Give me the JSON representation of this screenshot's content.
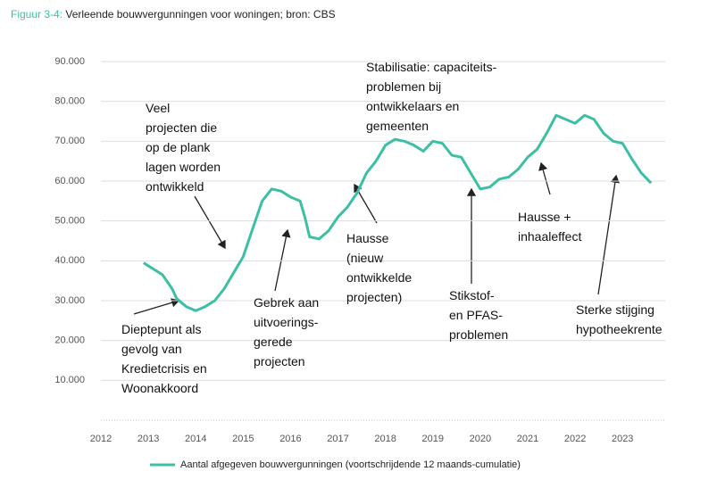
{
  "chart_data": {
    "type": "line",
    "title_label": "Figuur 3-4:",
    "title": "Verleende bouwvergunningen voor woningen; bron: CBS",
    "xlim": [
      2012,
      2023.9
    ],
    "xticks": [
      2012,
      2013,
      2014,
      2015,
      2016,
      2017,
      2018,
      2019,
      2020,
      2021,
      2022,
      2023
    ],
    "ylim": [
      0,
      90000
    ],
    "yticks": [
      {
        "value": 10000,
        "label": "10.000"
      },
      {
        "value": 20000,
        "label": "20.000"
      },
      {
        "value": 30000,
        "label": "30.000"
      },
      {
        "value": 40000,
        "label": "40.000"
      },
      {
        "value": 50000,
        "label": "50.000"
      },
      {
        "value": 60000,
        "label": "60.000"
      },
      {
        "value": 70000,
        "label": "70.000"
      },
      {
        "value": 80000,
        "label": "80.000"
      },
      {
        "value": 90000,
        "label": "90.000"
      }
    ],
    "grid": true,
    "legend": "bottom",
    "x": [
      2012.9,
      2013.1,
      2013.3,
      2013.5,
      2013.6,
      2013.8,
      2014.0,
      2014.2,
      2014.4,
      2014.6,
      2014.8,
      2015.0,
      2015.2,
      2015.4,
      2015.6,
      2015.8,
      2016.0,
      2016.2,
      2016.3,
      2016.4,
      2016.6,
      2016.8,
      2017.0,
      2017.2,
      2017.4,
      2017.6,
      2017.8,
      2018.0,
      2018.2,
      2018.4,
      2018.6,
      2018.8,
      2019.0,
      2019.2,
      2019.4,
      2019.6,
      2019.8,
      2020.0,
      2020.2,
      2020.4,
      2020.6,
      2020.8,
      2021.0,
      2021.2,
      2021.4,
      2021.6,
      2021.8,
      2022.0,
      2022.2,
      2022.4,
      2022.6,
      2022.8,
      2023.0,
      2023.2,
      2023.4,
      2023.6
    ],
    "series": [
      {
        "name": "Aantal afgegeven bouwvergunningen (voortschrijdende 12 maands-cumulatie)",
        "color": "#3dbfa6",
        "values": [
          39500,
          38000,
          36500,
          33000,
          30500,
          28500,
          27500,
          28500,
          30000,
          33000,
          37000,
          41000,
          48000,
          55000,
          58000,
          57500,
          56000,
          55000,
          51000,
          46000,
          45500,
          47500,
          51000,
          53500,
          57000,
          62000,
          65000,
          69000,
          70500,
          70000,
          69000,
          67500,
          70000,
          69500,
          66500,
          66000,
          62000,
          58000,
          58500,
          60500,
          61000,
          63000,
          66000,
          68000,
          72000,
          76500,
          75500,
          74500,
          76500,
          75500,
          72000,
          70000,
          69500,
          65500,
          62000,
          59500
        ]
      }
    ],
    "annotations": [
      [
        "Veel",
        "projecten die",
        "op de plank",
        "lagen worden",
        "ontwikkeld"
      ],
      [
        "Dieptepunt als",
        "gevolg van",
        "Kredietcrisis en",
        "Woonakkoord"
      ],
      [
        "Gebrek aan",
        "uitvoerings-",
        "gerede",
        "projecten"
      ],
      [
        "Hausse",
        "(nieuw",
        "ontwikkelde",
        "projecten)"
      ],
      [
        "Stabilisatie: capaciteits-",
        "problemen bij",
        "ontwikkelaars en",
        "gemeenten"
      ],
      [
        "Stikstof-",
        "en PFAS-",
        "problemen"
      ],
      [
        "Hausse +",
        "inhaaleffect"
      ],
      [
        "Sterke stijging",
        "hypotheekrente"
      ]
    ]
  }
}
